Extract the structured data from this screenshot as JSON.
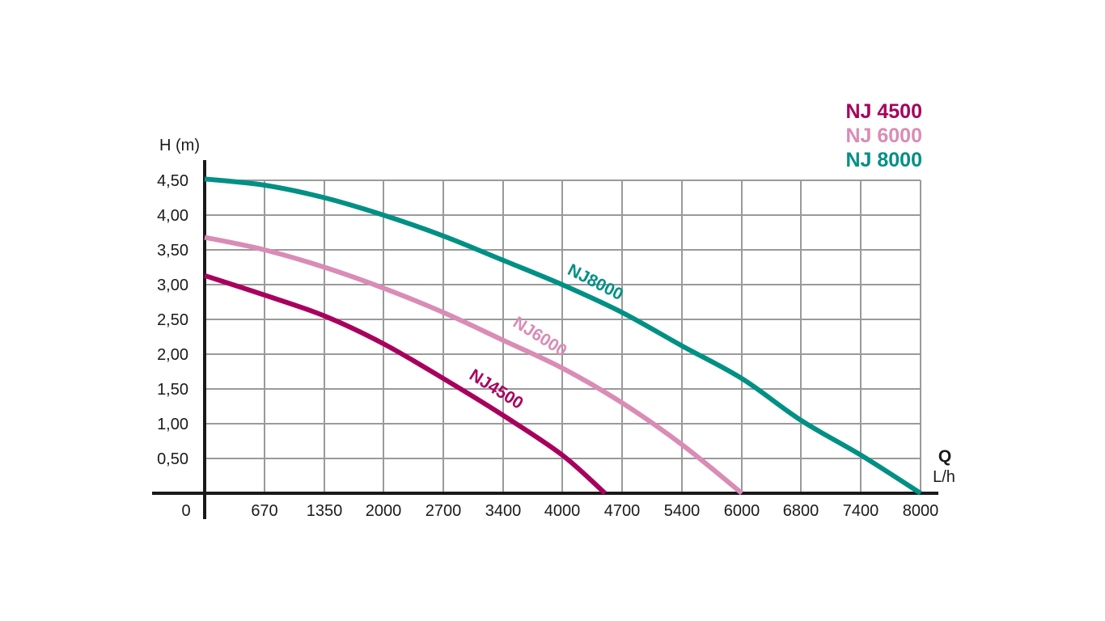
{
  "chart_data": {
    "type": "line",
    "ylabel": "H (m)",
    "xlabel_symbol": "Q",
    "xlabel_unit": "L/h",
    "origin_label": "0",
    "x_tick_labels": [
      "670",
      "1350",
      "2000",
      "2700",
      "3400",
      "4000",
      "4700",
      "5400",
      "6000",
      "6800",
      "7400",
      "8000"
    ],
    "y_tick_labels": [
      "0,50",
      "1,00",
      "1,50",
      "2,00",
      "2,50",
      "3,00",
      "3,50",
      "4,00",
      "4,50"
    ],
    "y_ticks": [
      0.5,
      1.0,
      1.5,
      2.0,
      2.5,
      3.0,
      3.5,
      4.0,
      4.5
    ],
    "ylim": [
      0,
      4.5
    ],
    "grid": true,
    "legend_position": "top-right",
    "series": [
      {
        "name": "NJ 4500",
        "curve_label": "NJ4500",
        "color": "#a8005d",
        "points": [
          [
            0,
            3.13
          ],
          [
            670,
            2.85
          ],
          [
            1350,
            2.55
          ],
          [
            2000,
            2.15
          ],
          [
            2700,
            1.65
          ],
          [
            3400,
            1.12
          ],
          [
            4000,
            0.55
          ],
          [
            4500,
            0
          ]
        ]
      },
      {
        "name": "NJ 6000",
        "curve_label": "NJ6000",
        "color": "#d98cb5",
        "points": [
          [
            0,
            3.68
          ],
          [
            670,
            3.5
          ],
          [
            1350,
            3.25
          ],
          [
            2000,
            2.95
          ],
          [
            2700,
            2.6
          ],
          [
            3400,
            2.2
          ],
          [
            4000,
            1.8
          ],
          [
            4700,
            1.3
          ],
          [
            5400,
            0.7
          ],
          [
            6000,
            0
          ]
        ]
      },
      {
        "name": "NJ 8000",
        "curve_label": "NJ8000",
        "color": "#009084",
        "points": [
          [
            0,
            4.52
          ],
          [
            670,
            4.43
          ],
          [
            1350,
            4.25
          ],
          [
            2000,
            4.0
          ],
          [
            2700,
            3.7
          ],
          [
            3400,
            3.35
          ],
          [
            4000,
            3.0
          ],
          [
            4700,
            2.6
          ],
          [
            5400,
            2.12
          ],
          [
            6000,
            1.65
          ],
          [
            6800,
            1.05
          ],
          [
            7400,
            0.55
          ],
          [
            8000,
            0
          ]
        ]
      }
    ]
  }
}
